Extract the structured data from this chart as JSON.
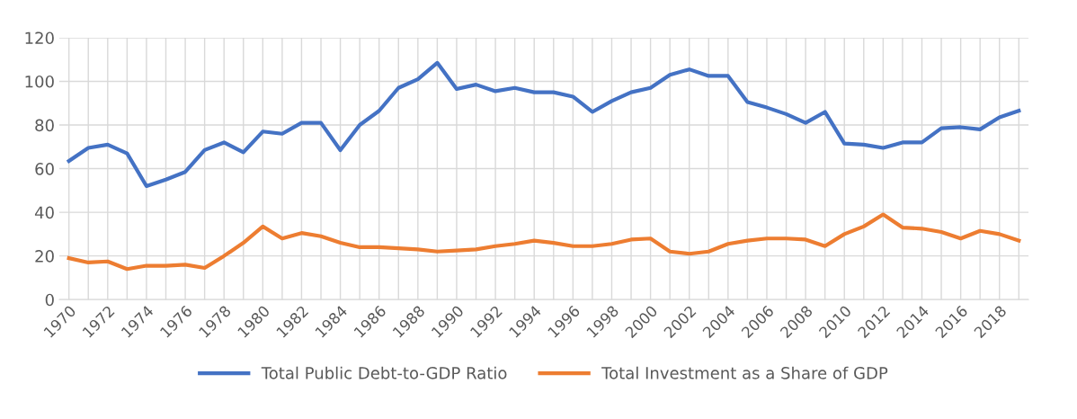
{
  "chart_data": {
    "type": "line",
    "categories": [
      "1970",
      null,
      "1972",
      null,
      "1974",
      null,
      "1976",
      null,
      "1978",
      null,
      "1980",
      null,
      "1982",
      null,
      "1984",
      null,
      "1986",
      null,
      "1988",
      null,
      "1990",
      null,
      "1992",
      null,
      "1994",
      null,
      "1996",
      null,
      "1998",
      null,
      "2000",
      null,
      "2002",
      null,
      "2004",
      null,
      "2006",
      null,
      "2008",
      null,
      "2010",
      null,
      "2012",
      null,
      "2014",
      null,
      "2016",
      null,
      "2018",
      null
    ],
    "series": [
      {
        "name": "Total Public Debt-to-GDP Ratio",
        "color": "#4472c4",
        "values": [
          63.5,
          69.5,
          71,
          67,
          52,
          55,
          58.5,
          68.5,
          72,
          67.5,
          77,
          76,
          81,
          81,
          68.5,
          80,
          86.5,
          97,
          101,
          108.5,
          96.5,
          98.5,
          95.5,
          97,
          95,
          95,
          93,
          86,
          91,
          95,
          97,
          103,
          105.5,
          102.5,
          102.5,
          90.5,
          88,
          85,
          81,
          86,
          71.5,
          71,
          69.5,
          72,
          72,
          78.5,
          79,
          78,
          83.5,
          86.5
        ]
      },
      {
        "name": "Total Investment as a Share of GDP",
        "color": "#ed7d31",
        "values": [
          19,
          17,
          17.5,
          14,
          15.5,
          15.5,
          16,
          14.5,
          20,
          26,
          33.5,
          28,
          30.5,
          29,
          26,
          24,
          24,
          23.5,
          23,
          22,
          22.5,
          23,
          24.5,
          25.5,
          27,
          26,
          24.5,
          24.5,
          25.5,
          27.5,
          28,
          22,
          21,
          22,
          25.5,
          27,
          28,
          28,
          27.5,
          24.5,
          30,
          33.5,
          39,
          33,
          32.5,
          31,
          28,
          31.5,
          30,
          27
        ]
      }
    ],
    "ylim": [
      0,
      120
    ],
    "yticks": [
      0,
      20,
      40,
      60,
      80,
      100,
      120
    ],
    "grid": true,
    "legend": "bottom",
    "marker": "none",
    "line_style": "solid"
  }
}
